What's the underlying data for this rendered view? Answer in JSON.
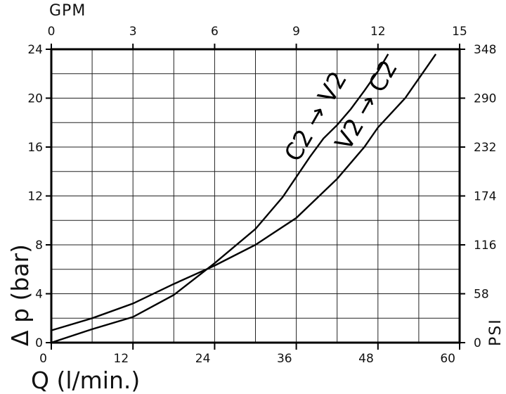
{
  "chart_data": {
    "type": "line",
    "xlabel": "Q (l/min.)",
    "ylabel": "Δ p (bar)",
    "x2label": "GPM",
    "y2label": "PSI",
    "xlim": [
      0,
      60
    ],
    "ylim": [
      0,
      24
    ],
    "x2lim": [
      0,
      15
    ],
    "y2lim": [
      0,
      348
    ],
    "x_ticks": [
      0,
      12,
      24,
      36,
      48,
      60
    ],
    "y_ticks": [
      0,
      4,
      8,
      12,
      16,
      20,
      24
    ],
    "x2_ticks": [
      0,
      3,
      6,
      9,
      12,
      15
    ],
    "y2_ticks": [
      0,
      58,
      116,
      174,
      232,
      290,
      348
    ],
    "grid": true,
    "series": [
      {
        "name": "C2 → V2",
        "x": [
          0,
          6,
          12,
          18,
          24,
          30,
          34,
          38,
          40,
          42,
          44,
          46,
          48,
          49.5
        ],
        "y": [
          0,
          1.1,
          2.1,
          3.9,
          6.5,
          9.3,
          11.9,
          15.2,
          16.7,
          17.8,
          19.1,
          20.6,
          22.2,
          23.6
        ]
      },
      {
        "name": "V2 → C2",
        "x": [
          0,
          6,
          12,
          18,
          24,
          30,
          36,
          42,
          46,
          48,
          52,
          55,
          56.5
        ],
        "y": [
          1.0,
          2.0,
          3.2,
          4.8,
          6.3,
          8.0,
          10.2,
          13.4,
          16.0,
          17.6,
          20.0,
          22.4,
          23.6
        ]
      }
    ]
  }
}
